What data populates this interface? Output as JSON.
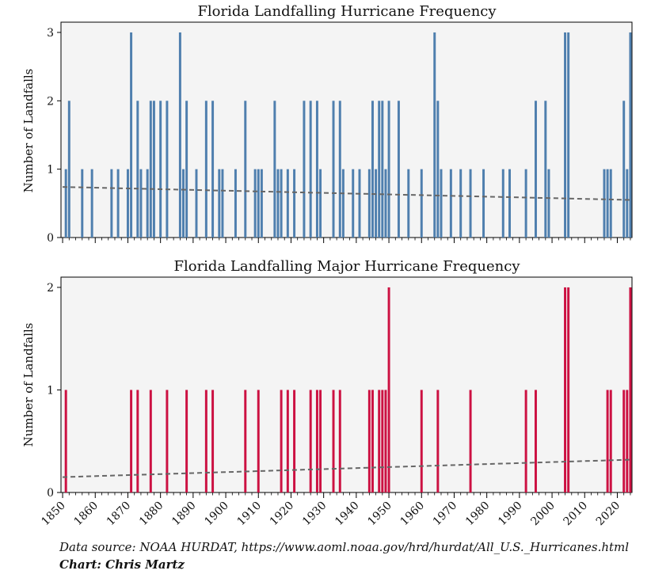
{
  "chart_data": [
    {
      "type": "bar",
      "title": "Florida Landfalling Hurricane Frequency",
      "ylabel": "Number of Landfalls",
      "xlabel": "",
      "xlim": [
        1850,
        2024
      ],
      "ylim": [
        0,
        3.15
      ],
      "yticks": [
        0,
        1,
        2,
        3
      ],
      "ytick_labels": [
        "0",
        "1",
        "2",
        "3"
      ],
      "color": "#4f7fae",
      "trend": {
        "start": 0.74,
        "end": 0.55
      },
      "values": {
        "1851": 1,
        "1852": 2,
        "1856": 1,
        "1859": 1,
        "1865": 1,
        "1867": 1,
        "1870": 1,
        "1871": 3,
        "1873": 2,
        "1874": 1,
        "1876": 1,
        "1877": 2,
        "1878": 2,
        "1880": 2,
        "1882": 2,
        "1886": 3,
        "1887": 1,
        "1888": 2,
        "1891": 1,
        "1894": 2,
        "1896": 2,
        "1898": 1,
        "1899": 1,
        "1903": 1,
        "1906": 2,
        "1909": 1,
        "1910": 1,
        "1911": 1,
        "1915": 2,
        "1916": 1,
        "1917": 1,
        "1919": 1,
        "1921": 1,
        "1924": 2,
        "1926": 2,
        "1928": 2,
        "1929": 1,
        "1933": 2,
        "1935": 2,
        "1936": 1,
        "1939": 1,
        "1941": 1,
        "1944": 1,
        "1945": 2,
        "1946": 1,
        "1947": 2,
        "1948": 2,
        "1949": 1,
        "1950": 2,
        "1953": 2,
        "1956": 1,
        "1960": 1,
        "1964": 3,
        "1965": 2,
        "1966": 1,
        "1969": 1,
        "1972": 1,
        "1975": 1,
        "1979": 1,
        "1985": 1,
        "1987": 1,
        "1992": 1,
        "1995": 2,
        "1998": 2,
        "1999": 1,
        "2004": 3,
        "2005": 3,
        "2016": 1,
        "2017": 1,
        "2018": 1,
        "2022": 2,
        "2023": 1,
        "2024": 3
      }
    },
    {
      "type": "bar",
      "title": "Florida Landfalling Major Hurricane Frequency",
      "ylabel": "Number of Landfalls",
      "xlabel": "",
      "xlim": [
        1850,
        2024
      ],
      "ylim": [
        0,
        2.1
      ],
      "yticks": [
        0,
        1,
        2
      ],
      "ytick_labels": [
        "0",
        "1",
        "2"
      ],
      "color": "#cc1142",
      "trend": {
        "start": 0.15,
        "end": 0.32
      },
      "values": {
        "1851": 1,
        "1871": 1,
        "1873": 1,
        "1877": 1,
        "1882": 1,
        "1888": 1,
        "1894": 1,
        "1896": 1,
        "1906": 1,
        "1910": 1,
        "1917": 1,
        "1919": 1,
        "1921": 1,
        "1926": 1,
        "1928": 1,
        "1929": 1,
        "1933": 1,
        "1935": 1,
        "1944": 1,
        "1945": 1,
        "1947": 1,
        "1948": 1,
        "1949": 1,
        "1950": 2,
        "1960": 1,
        "1965": 1,
        "1975": 1,
        "1992": 1,
        "1995": 1,
        "2004": 2,
        "2005": 2,
        "2017": 1,
        "2018": 1,
        "2022": 1,
        "2023": 1,
        "2024": 2
      }
    }
  ],
  "x_axis": {
    "ticks": [
      1850,
      1860,
      1870,
      1880,
      1890,
      1900,
      1910,
      1920,
      1930,
      1940,
      1950,
      1960,
      1970,
      1980,
      1990,
      2000,
      2010,
      2020
    ],
    "tick_labels": [
      "1850",
      "1860",
      "1870",
      "1880",
      "1890",
      "1900",
      "1910",
      "1920",
      "1930",
      "1940",
      "1950",
      "1960",
      "1970",
      "1980",
      "1990",
      "2000",
      "2010",
      "2020"
    ]
  },
  "footer": {
    "source": "Data source: NOAA HURDAT, https://www.aoml.noaa.gov/hrd/hurdat/All_U.S._Hurricanes.html",
    "credit": "Chart: Chris Martz"
  },
  "colors": {
    "panel_bg": "#f4f4f4",
    "trend_line": "#666666"
  }
}
